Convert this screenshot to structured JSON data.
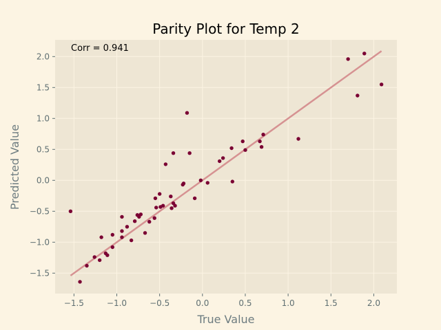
{
  "chart_data": {
    "type": "scatter",
    "title": "Parity Plot for Temp 2",
    "xlabel": "True Value",
    "ylabel": "Predicted Value",
    "annotation": "Corr = 0.941",
    "xlim": [
      -1.72,
      2.27
    ],
    "ylim": [
      -1.83,
      2.27
    ],
    "xticks": [
      -1.5,
      -1.0,
      -0.5,
      0.0,
      0.5,
      1.0,
      1.5,
      2.0
    ],
    "yticks": [
      -1.5,
      -1.0,
      -0.5,
      0.0,
      0.5,
      1.0,
      1.5,
      2.0
    ],
    "xtick_labels": [
      "−1.5",
      "−1.0",
      "−0.5",
      "0.0",
      "0.5",
      "1.0",
      "1.5",
      "2.0"
    ],
    "ytick_labels": [
      "−1.5",
      "−1.0",
      "−0.5",
      "0.0",
      "0.5",
      "1.0",
      "1.5",
      "2.0"
    ],
    "grid": true,
    "fit_line": {
      "x": [
        -1.54,
        2.09
      ],
      "y": [
        -1.54,
        2.09
      ],
      "color": "#d69292"
    },
    "point_color": "#7a0033",
    "points": [
      {
        "x": -1.54,
        "y": -0.5
      },
      {
        "x": -1.43,
        "y": -1.64
      },
      {
        "x": -1.35,
        "y": -1.38
      },
      {
        "x": -1.26,
        "y": -1.24
      },
      {
        "x": -1.2,
        "y": -1.29
      },
      {
        "x": -1.18,
        "y": -0.92
      },
      {
        "x": -1.13,
        "y": -1.18
      },
      {
        "x": -1.11,
        "y": -1.21
      },
      {
        "x": -1.05,
        "y": -0.88
      },
      {
        "x": -1.05,
        "y": -1.08
      },
      {
        "x": -0.94,
        "y": -0.59
      },
      {
        "x": -0.94,
        "y": -0.82
      },
      {
        "x": -0.94,
        "y": -0.92
      },
      {
        "x": -0.88,
        "y": -0.75
      },
      {
        "x": -0.83,
        "y": -0.97
      },
      {
        "x": -0.79,
        "y": -0.66
      },
      {
        "x": -0.76,
        "y": -0.56
      },
      {
        "x": -0.74,
        "y": -0.59
      },
      {
        "x": -0.72,
        "y": -0.55
      },
      {
        "x": -0.67,
        "y": -0.85
      },
      {
        "x": -0.62,
        "y": -0.67
      },
      {
        "x": -0.56,
        "y": -0.61
      },
      {
        "x": -0.55,
        "y": -0.29
      },
      {
        "x": -0.54,
        "y": -0.44
      },
      {
        "x": -0.5,
        "y": -0.22
      },
      {
        "x": -0.49,
        "y": -0.43
      },
      {
        "x": -0.46,
        "y": -0.41
      },
      {
        "x": -0.43,
        "y": 0.26
      },
      {
        "x": -0.37,
        "y": -0.26
      },
      {
        "x": -0.36,
        "y": -0.45
      },
      {
        "x": -0.34,
        "y": 0.44
      },
      {
        "x": -0.34,
        "y": -0.37
      },
      {
        "x": -0.32,
        "y": -0.41
      },
      {
        "x": -0.23,
        "y": -0.07
      },
      {
        "x": -0.22,
        "y": -0.05
      },
      {
        "x": -0.18,
        "y": 1.09
      },
      {
        "x": -0.15,
        "y": 0.44
      },
      {
        "x": -0.09,
        "y": -0.29
      },
      {
        "x": -0.02,
        "y": 0.0
      },
      {
        "x": 0.06,
        "y": -0.04
      },
      {
        "x": 0.2,
        "y": 0.31
      },
      {
        "x": 0.24,
        "y": 0.36
      },
      {
        "x": 0.34,
        "y": 0.52
      },
      {
        "x": 0.35,
        "y": -0.02
      },
      {
        "x": 0.47,
        "y": 0.63
      },
      {
        "x": 0.5,
        "y": 0.49
      },
      {
        "x": 0.67,
        "y": 0.63
      },
      {
        "x": 0.69,
        "y": 0.54
      },
      {
        "x": 0.71,
        "y": 0.74
      },
      {
        "x": 1.12,
        "y": 0.67
      },
      {
        "x": 1.7,
        "y": 1.96
      },
      {
        "x": 1.81,
        "y": 1.37
      },
      {
        "x": 1.89,
        "y": 2.05
      },
      {
        "x": 2.09,
        "y": 1.55
      }
    ]
  },
  "style": {
    "figure_bg": "#fcf4e3",
    "axes_bg": "#eee6d4",
    "grid_color": "#fcf4e3",
    "tick_color": "#5f6f72",
    "label_color": "#6d7c80",
    "title_color": "#000000"
  }
}
